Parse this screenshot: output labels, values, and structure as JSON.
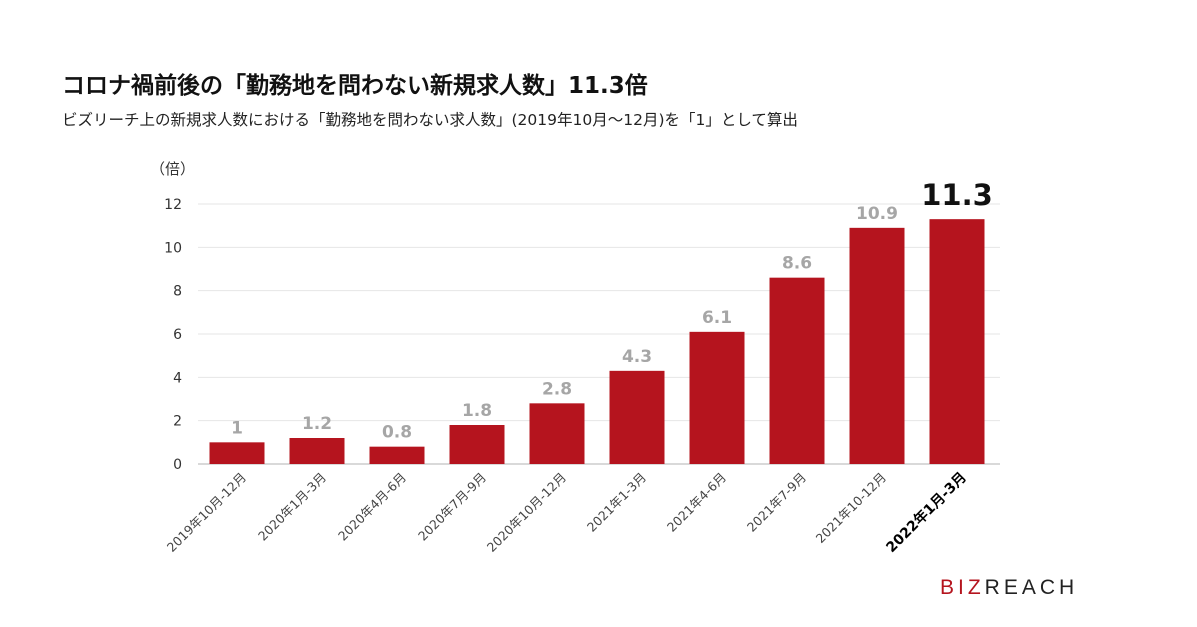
{
  "title": "コロナ禍前後の「勤務地を問わない新規求人数」11.3倍",
  "subtitle": "ビズリーチ上の新規求人数における「勤務地を問わない求人数」(2019年10月～12月)を「1」として算出",
  "logo": {
    "part1": "BIZ",
    "part2": "REACH"
  },
  "chart_data": {
    "type": "bar",
    "ylabel": "（倍）",
    "ylim": [
      0,
      12
    ],
    "yticks": [
      0,
      2,
      4,
      6,
      8,
      10,
      12
    ],
    "grid": true,
    "categories": [
      "2019年10月-12月",
      "2020年1月-3月",
      "2020年4月-6月",
      "2020年7月-9月",
      "2020年10月-12月",
      "2021年1-3月",
      "2021年4-6月",
      "2021年7-9月",
      "2021年10-12月",
      "2022年1月-3月"
    ],
    "values": [
      1,
      1.2,
      0.8,
      1.8,
      2.8,
      4.3,
      6.1,
      8.6,
      10.9,
      11.3
    ],
    "value_labels": [
      "1",
      "1.2",
      "0.8",
      "1.8",
      "2.8",
      "4.3",
      "6.1",
      "8.6",
      "10.9",
      "11.3"
    ],
    "highlight_index": 9,
    "bar_color": "#b5141e",
    "label_color": "#a6a6a6",
    "highlight_label_color": "#111111"
  }
}
